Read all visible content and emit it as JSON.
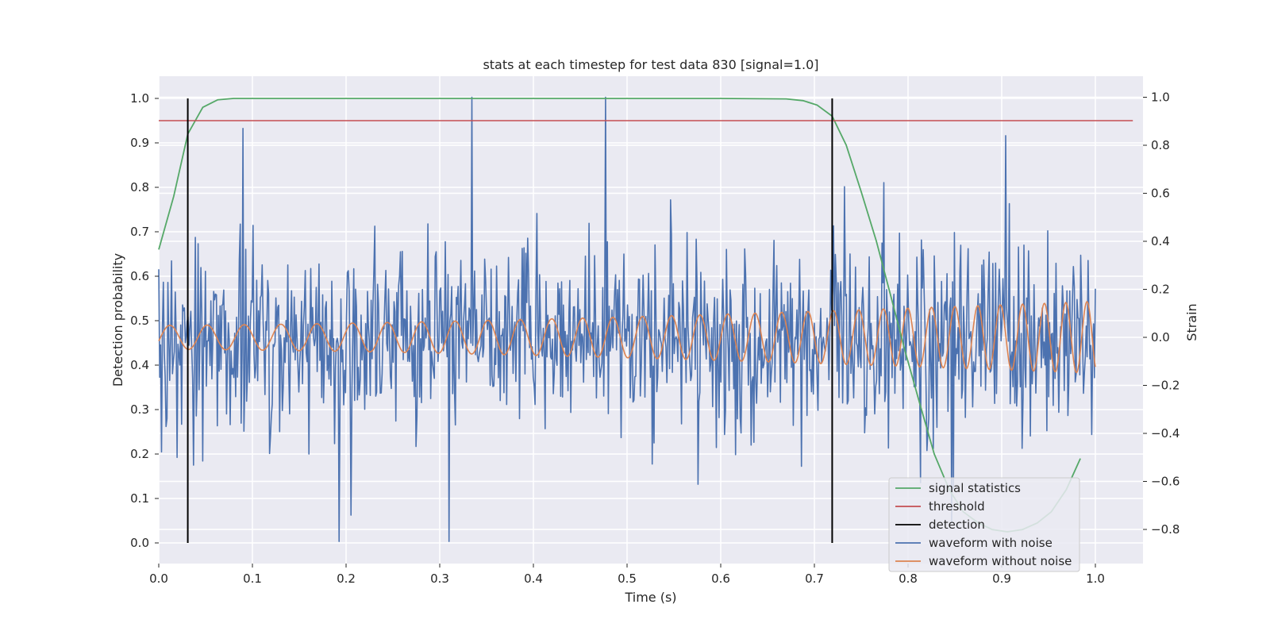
{
  "chart_data": {
    "type": "line",
    "title": "stats at each timestep for test data 830 [signal=1.0]",
    "xlabel": "Time (s)",
    "ylabel_left": "Detection probability",
    "ylabel_right": "Strain",
    "xlim": [
      0.0,
      1.05
    ],
    "ylim_left": [
      -0.05,
      1.05
    ],
    "ylim_right": [
      -0.94,
      1.09
    ],
    "x_ticks": [
      "0.0",
      "0.1",
      "0.2",
      "0.3",
      "0.4",
      "0.5",
      "0.6",
      "0.7",
      "0.8",
      "0.9",
      "1.0"
    ],
    "y_ticks_left": [
      "0.0",
      "0.1",
      "0.2",
      "0.3",
      "0.4",
      "0.5",
      "0.6",
      "0.7",
      "0.8",
      "0.9",
      "1.0"
    ],
    "y_ticks_right": [
      "−0.8",
      "−0.6",
      "−0.4",
      "−0.2",
      "0.0",
      "0.2",
      "0.4",
      "0.6",
      "0.8",
      "1.0"
    ],
    "grid": true,
    "legend_position": "lower-right",
    "colors": {
      "signal_statistics": "#55a868",
      "threshold": "#c44e52",
      "detection": "#000000",
      "waveform_with_noise": "#4c72b0",
      "waveform_without_noise": "#dd8452",
      "plot_background": "#eaeaf2"
    },
    "legend": [
      "signal statistics",
      "threshold",
      "detection",
      "waveform with noise",
      "waveform without noise"
    ],
    "series": [
      {
        "name": "signal statistics",
        "axis": "left",
        "x": [
          0.0,
          0.016,
          0.031,
          0.047,
          0.063,
          0.08,
          0.2,
          0.4,
          0.6,
          0.67,
          0.688,
          0.703,
          0.719,
          0.734,
          0.75,
          0.766,
          0.781,
          0.797,
          0.813,
          0.828,
          0.844,
          0.859,
          0.875,
          0.89,
          0.906,
          0.922,
          0.938,
          0.953,
          0.969,
          0.984
        ],
        "y": [
          0.66,
          0.78,
          0.92,
          0.98,
          0.997,
          1.0,
          1.0,
          1.0,
          1.0,
          0.999,
          0.995,
          0.985,
          0.96,
          0.895,
          0.79,
          0.68,
          0.56,
          0.43,
          0.31,
          0.2,
          0.12,
          0.07,
          0.045,
          0.03,
          0.025,
          0.03,
          0.045,
          0.07,
          0.12,
          0.19
        ]
      },
      {
        "name": "threshold",
        "axis": "left",
        "x": [
          0.0,
          1.04
        ],
        "y": [
          0.95,
          0.95
        ]
      },
      {
        "name": "detection",
        "axis": "left",
        "x_lines": [
          0.031,
          0.719
        ],
        "y_range": [
          0.0,
          1.0
        ]
      },
      {
        "name": "waveform with noise",
        "axis": "right",
        "x_range": [
          0.0,
          1.0
        ],
        "amplitude_range": [
          -0.85,
          1.0
        ],
        "approx_std": 0.2,
        "samples": 1024,
        "notable_extrema": [
          {
            "x": 0.09,
            "y": 0.87
          },
          {
            "x": 0.193,
            "y": -0.85
          },
          {
            "x": 0.31,
            "y": -0.85
          },
          {
            "x": 0.334,
            "y": 1.0
          },
          {
            "x": 0.477,
            "y": 1.0
          },
          {
            "x": 0.904,
            "y": 0.84
          }
        ]
      },
      {
        "name": "waveform without noise",
        "axis": "right",
        "x_range": [
          0.0,
          1.0
        ],
        "y_center": 0.0,
        "amplitude_start": 0.05,
        "amplitude_end": 0.15,
        "frequency_start_hz": 25,
        "frequency_end_hz": 45
      }
    ]
  }
}
